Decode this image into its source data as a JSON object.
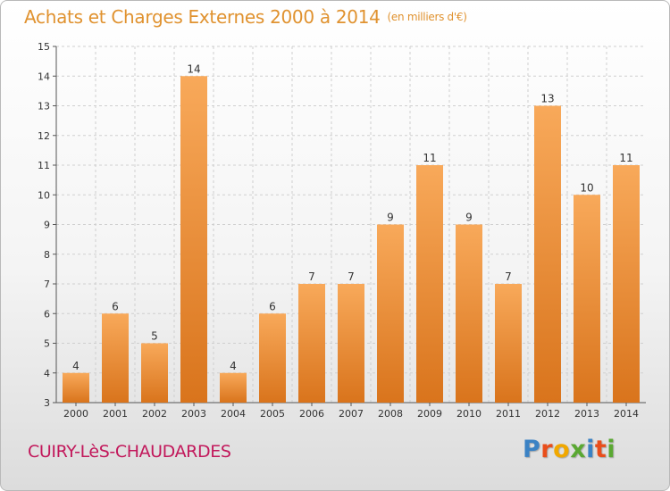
{
  "title": "Achats et Charges Externes 2000 à 2014",
  "subtitle": "(en milliers d'€)",
  "place": "CUIRY-LèS-CHAUDARDES",
  "brand": {
    "text": "Proxiti",
    "colors": [
      "#3b82c4",
      "#e94e1b",
      "#f1a800",
      "#5aa832",
      "#3b82c4",
      "#e94e1b",
      "#5aa832"
    ]
  },
  "colors": {
    "title": "#e0922f",
    "place": "#c2185b",
    "bar_top": "#f8a95a",
    "bar_bottom": "#d9741c",
    "grid": "#cfcfcf"
  },
  "chart_data": {
    "type": "bar",
    "categories": [
      "2000",
      "2001",
      "2002",
      "2003",
      "2004",
      "2005",
      "2006",
      "2007",
      "2008",
      "2009",
      "2010",
      "2011",
      "2012",
      "2013",
      "2014"
    ],
    "values": [
      4,
      6,
      5,
      14,
      4,
      6,
      7,
      7,
      9,
      11,
      9,
      7,
      13,
      10,
      11
    ],
    "ylim": [
      3,
      15
    ],
    "yticks": [
      3,
      4,
      5,
      6,
      7,
      8,
      9,
      10,
      11,
      12,
      13,
      14,
      15
    ],
    "grid": true,
    "data_labels": true
  }
}
